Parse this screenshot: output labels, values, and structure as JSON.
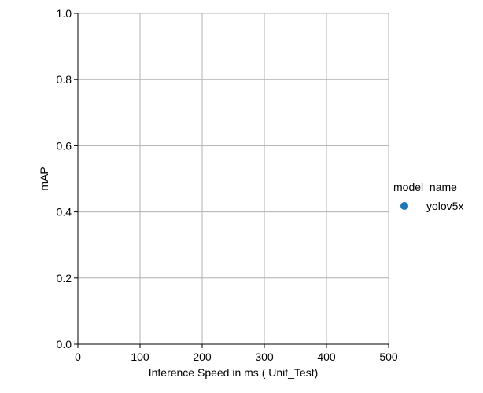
{
  "chart_data": {
    "type": "scatter",
    "title": "",
    "xlabel": "Inference Speed in ms ( Unit_Test)",
    "ylabel": "mAP",
    "xlim": [
      0,
      500
    ],
    "ylim": [
      0,
      1.0
    ],
    "x_ticks": [
      0,
      100,
      200,
      300,
      400,
      500
    ],
    "x_tick_labels": [
      "0",
      "100",
      "200",
      "300",
      "400",
      "500"
    ],
    "y_ticks": [
      0,
      0.2,
      0.4,
      0.6,
      0.8,
      1.0
    ],
    "y_tick_labels": [
      "0.0",
      "0.2",
      "0.4",
      "0.6",
      "0.8",
      "1.0"
    ],
    "grid": true,
    "legend": {
      "title": "model_name",
      "placement": "right",
      "entries": [
        {
          "name": "yolov5x",
          "color": "#1f77b4"
        }
      ]
    },
    "series": [
      {
        "name": "yolov5x",
        "color": "#1f77b4",
        "points": []
      }
    ]
  }
}
